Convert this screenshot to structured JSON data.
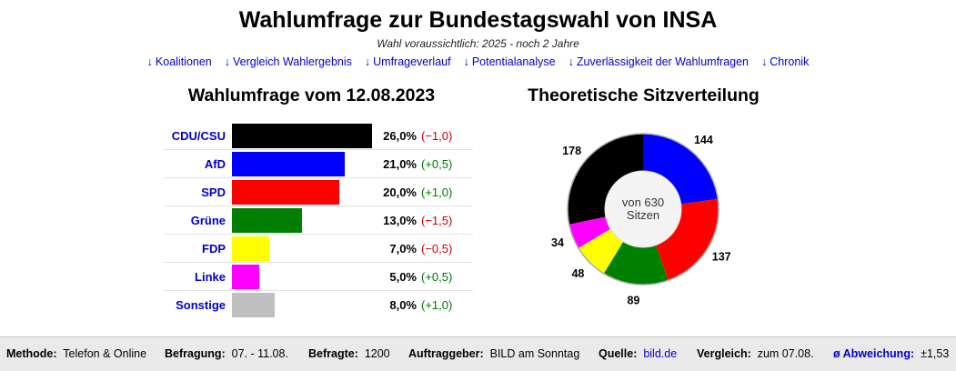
{
  "header": {
    "title": "Wahlumfrage zur Bundestagswahl von INSA",
    "subtitle": "Wahl voraussichtlich: 2025 - noch 2 Jahre"
  },
  "nav": [
    {
      "arrow": "↓",
      "label": "Koalitionen"
    },
    {
      "arrow": "↓",
      "label": "Vergleich Wahlergebnis"
    },
    {
      "arrow": "↓",
      "label": "Umfrageverlauf"
    },
    {
      "arrow": "↓",
      "label": "Potentialanalyse"
    },
    {
      "arrow": "↓",
      "label": "Zuverlässigkeit der Wahlumfragen"
    },
    {
      "arrow": "↓",
      "label": "Chronik"
    }
  ],
  "poll_heading": "Wahlumfrage vom 12.08.2023",
  "seats_heading": "Theoretische Sitzverteilung",
  "colors": {
    "CDU/CSU": "#000000",
    "AfD": "#0000ff",
    "SPD": "#ff0000",
    "Grüne": "#008000",
    "FDP": "#ffff00",
    "Linke": "#ff00ff",
    "Sonstige": "#c0c0c0",
    "link": "#0000cc",
    "negative": "#cc0000",
    "positive": "#007700"
  },
  "chart_data": [
    {
      "type": "bar",
      "orientation": "horizontal",
      "categories": [
        "CDU/CSU",
        "AfD",
        "SPD",
        "Grüne",
        "FDP",
        "Linke",
        "Sonstige"
      ],
      "values": [
        26.0,
        21.0,
        20.0,
        13.0,
        7.0,
        5.0,
        8.0
      ],
      "value_labels": [
        "26,0%",
        "21,0%",
        "20,0%",
        "13,0%",
        "7,0%",
        "5,0%",
        "8,0%"
      ],
      "changes": [
        -1.0,
        0.5,
        1.0,
        -1.5,
        -0.5,
        0.5,
        1.0
      ],
      "change_labels": [
        "(−1,0)",
        "(+0,5)",
        "(+1,0)",
        "(−1,5)",
        "(−0,5)",
        "(+0,5)",
        "(+1,0)"
      ],
      "xlim": [
        0,
        26
      ]
    },
    {
      "type": "pie",
      "style": "donut",
      "center_label": [
        "von 630",
        "Sitzen"
      ],
      "total": 630,
      "slices": [
        {
          "party": "CDU/CSU",
          "seats": 178
        },
        {
          "party": "AfD",
          "seats": 144
        },
        {
          "party": "SPD",
          "seats": 137
        },
        {
          "party": "Grüne",
          "seats": 89
        },
        {
          "party": "FDP",
          "seats": 48
        },
        {
          "party": "Linke",
          "seats": 34
        }
      ]
    }
  ],
  "footer": {
    "methode_label": "Methode:",
    "methode_value": "Telefon & Online",
    "befragung_label": "Befragung:",
    "befragung_value": "07. - 11.08.",
    "befragte_label": "Befragte:",
    "befragte_value": "1200",
    "auftrag_label": "Auftraggeber:",
    "auftrag_value": "BILD am Sonntag",
    "quelle_label": "Quelle:",
    "quelle_value": "bild.de",
    "vergleich_label": "Vergleich:",
    "vergleich_value": "zum 07.08.",
    "abw_label": "ø Abweichung:",
    "abw_value": "±1,53"
  }
}
